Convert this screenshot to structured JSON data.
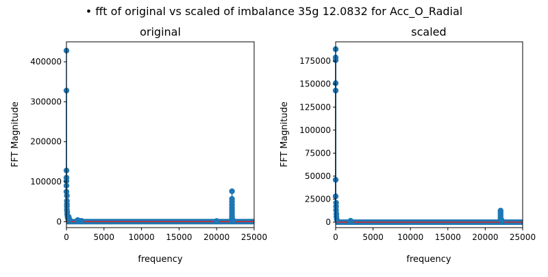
{
  "figure": {
    "suptitle": "• fft of original vs scaled of imbalance 35g 12.0832 for Acc_O_Radial"
  },
  "colors": {
    "stem": "#1f77b4",
    "baseline": "#d62728",
    "axis": "#000000"
  },
  "chart_data": [
    {
      "type": "scatter",
      "style": "stem",
      "title": "original",
      "xlabel": "frequency",
      "ylabel": "FFT Magnitude",
      "xlim": [
        0,
        25000
      ],
      "ylim": [
        -15000,
        450000
      ],
      "xticks": [
        0,
        5000,
        10000,
        15000,
        20000,
        25000
      ],
      "yticks": [
        0,
        100000,
        200000,
        300000,
        400000
      ],
      "grid": false,
      "points": [
        {
          "x": 0,
          "y": 428000
        },
        {
          "x": 0,
          "y": 328000
        },
        {
          "x": 0,
          "y": 128000
        },
        {
          "x": 0,
          "y": 110000
        },
        {
          "x": 0,
          "y": 102000
        },
        {
          "x": 0,
          "y": 90000
        },
        {
          "x": 0,
          "y": 75000
        },
        {
          "x": 60,
          "y": 65000
        },
        {
          "x": 60,
          "y": 52000
        },
        {
          "x": 60,
          "y": 44000
        },
        {
          "x": 60,
          "y": 38000
        },
        {
          "x": 60,
          "y": 30000
        },
        {
          "x": 100,
          "y": 24000
        },
        {
          "x": 100,
          "y": 18000
        },
        {
          "x": 150,
          "y": 12000
        },
        {
          "x": 200,
          "y": 8000
        },
        {
          "x": 300,
          "y": 12000
        },
        {
          "x": 400,
          "y": 6000
        },
        {
          "x": 1500,
          "y": 4000
        },
        {
          "x": 2000,
          "y": 2000
        },
        {
          "x": 20000,
          "y": 1500
        },
        {
          "x": 22050,
          "y": 76000
        },
        {
          "x": 22050,
          "y": 57000
        },
        {
          "x": 22050,
          "y": 50000
        },
        {
          "x": 22050,
          "y": 43000
        },
        {
          "x": 22050,
          "y": 36000
        },
        {
          "x": 22050,
          "y": 30000
        },
        {
          "x": 22050,
          "y": 24000
        },
        {
          "x": 22050,
          "y": 18000
        },
        {
          "x": 22050,
          "y": 13000
        },
        {
          "x": 22050,
          "y": 9000
        },
        {
          "x": 22050,
          "y": 5000
        },
        {
          "x": 22200,
          "y": 3000
        }
      ]
    },
    {
      "type": "scatter",
      "style": "stem",
      "title": "scaled",
      "xlabel": "frequency",
      "ylabel": "FFT Magnitude",
      "xlim": [
        0,
        25000
      ],
      "ylim": [
        -6000,
        196000
      ],
      "xticks": [
        0,
        5000,
        10000,
        15000,
        20000,
        25000
      ],
      "yticks": [
        0,
        25000,
        50000,
        75000,
        100000,
        125000,
        150000,
        175000
      ],
      "grid": false,
      "points": [
        {
          "x": 0,
          "y": 188000
        },
        {
          "x": 0,
          "y": 179000
        },
        {
          "x": 0,
          "y": 176000
        },
        {
          "x": 0,
          "y": 151000
        },
        {
          "x": 0,
          "y": 143000
        },
        {
          "x": 0,
          "y": 46000
        },
        {
          "x": 0,
          "y": 28000
        },
        {
          "x": 60,
          "y": 21000
        },
        {
          "x": 60,
          "y": 17000
        },
        {
          "x": 60,
          "y": 13000
        },
        {
          "x": 100,
          "y": 9000
        },
        {
          "x": 100,
          "y": 6000
        },
        {
          "x": 150,
          "y": 3000
        },
        {
          "x": 2000,
          "y": 1500
        },
        {
          "x": 22050,
          "y": 12500
        },
        {
          "x": 22050,
          "y": 11000
        },
        {
          "x": 22050,
          "y": 9000
        },
        {
          "x": 22050,
          "y": 7000
        },
        {
          "x": 22050,
          "y": 5000
        },
        {
          "x": 22050,
          "y": 3500
        },
        {
          "x": 22200,
          "y": 2000
        }
      ]
    }
  ]
}
